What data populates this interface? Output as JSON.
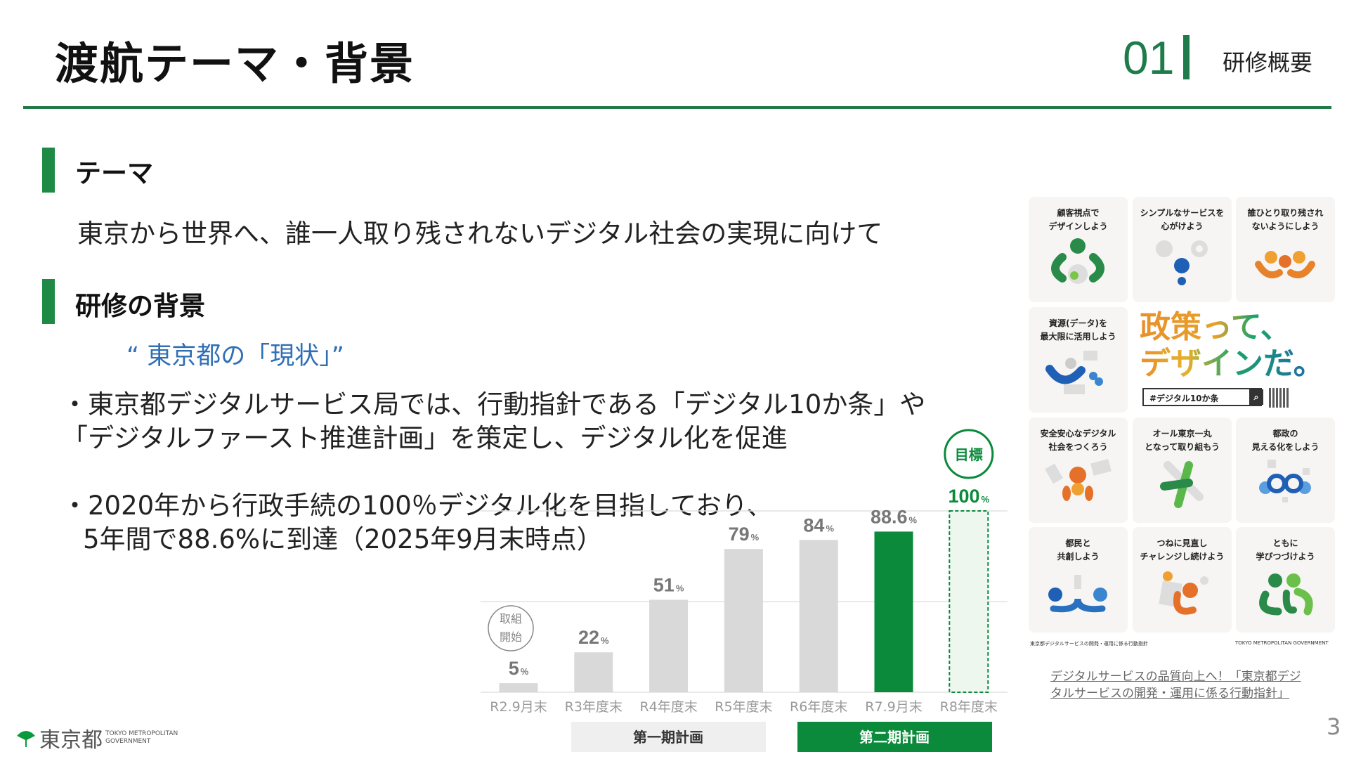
{
  "header": {
    "title": "渡航テーマ・背景",
    "section_number": "01",
    "section_label": "研修概要",
    "accent": "#1e7b4a"
  },
  "theme": {
    "heading": "テーマ",
    "text": "東京から世界へ、誰一人取り残されないデジタル社会の実現に向けて"
  },
  "background": {
    "heading": "研修の背景",
    "quote": "“ 東京都の「現状」”",
    "bullets": [
      [
        "・東京都デジタルサービス局では、行動指針である「デジタル10か条」や",
        "「デジタルファースト推進計画」を策定し、デジタル化を促進"
      ],
      [
        "・2020年から行政手続の100％デジタル化を目指しており、",
        "5年間で88.6%に到達（2025年9月末時点）"
      ]
    ]
  },
  "chart_data": {
    "type": "bar",
    "categories": [
      "R2.9月末",
      "R3年度末",
      "R4年度末",
      "R5年度末",
      "R6年度末",
      "R7.9月末",
      "R8年度末"
    ],
    "values": [
      5,
      22,
      51,
      79,
      84,
      88.6,
      100
    ],
    "value_labels": [
      "5",
      "22",
      "51",
      "79",
      "84",
      "88.6",
      "100"
    ],
    "unit": "%",
    "ylim": [
      0,
      100
    ],
    "grid": true,
    "bar_styles": [
      "gray",
      "gray",
      "gray",
      "gray",
      "gray",
      "green",
      "target-dashed"
    ],
    "colors": {
      "gray": "#d9d9d9",
      "green": "#0a8a3a",
      "target_fill": "#eef7ee",
      "label_gray": "#777"
    },
    "annotations": {
      "start": [
        "取組",
        "開始"
      ],
      "target": "目標"
    },
    "periods": [
      {
        "label": "第一期計画"
      },
      {
        "label": "第二期計画"
      }
    ]
  },
  "panel": {
    "cards": [
      {
        "text": [
          "顧客視点で",
          "デザインしよう"
        ],
        "icon": "customer-view-icon"
      },
      {
        "text": [
          "シンプルなサービスを",
          "心がけよう"
        ],
        "icon": "simple-service-icon"
      },
      {
        "text": [
          "誰ひとり取り残され",
          "ないようにしよう"
        ],
        "icon": "inclusion-icon"
      },
      {
        "text": [
          "資源(データ)を",
          "最大限に活用しよう"
        ],
        "icon": "data-resource-icon"
      },
      {
        "text": [
          "安全安心なデジタル",
          "社会をつくろう"
        ],
        "icon": "safety-icon"
      },
      {
        "text": [
          "オール東京一丸",
          "となって取り組もう"
        ],
        "icon": "all-tokyo-icon"
      },
      {
        "text": [
          "都政の",
          "見える化をしよう"
        ],
        "icon": "visibility-icon"
      },
      {
        "text": [
          "都民と",
          "共創しよう"
        ],
        "icon": "co-creation-icon"
      },
      {
        "text": [
          "つねに見直し",
          "チャレンジし続けよう"
        ],
        "icon": "challenge-icon"
      },
      {
        "text": [
          "ともに",
          "学びつづけよう"
        ],
        "icon": "learn-together-icon"
      }
    ],
    "slogan": [
      "政策って、",
      "デザインだ。"
    ],
    "hashtag": "#デジタル10か条",
    "footer_left": "東京都デジタルサービスの開発・運用に係る行動指針",
    "footer_right": "TOKYO METROPOLITAN GOVERNMENT"
  },
  "link": [
    "デジタルサービスの品質向上へ！「東京都デジ",
    "タルサービスの開発・運用に係る行動指針」"
  ],
  "page_number": "3",
  "logo": {
    "kanji": "東京都",
    "en": [
      "TOKYO METROPOLITAN",
      "GOVERNMENT"
    ]
  }
}
